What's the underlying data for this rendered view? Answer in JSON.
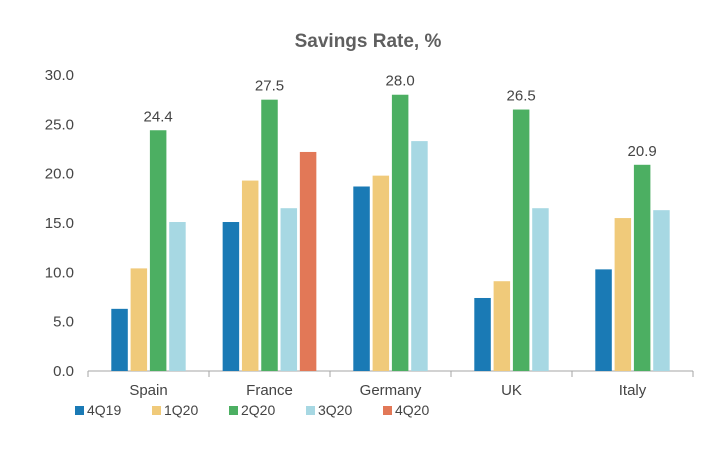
{
  "chart_data": {
    "type": "bar",
    "title": "Savings Rate, %",
    "xlabel": "",
    "ylabel": "",
    "ylim": [
      0,
      30
    ],
    "yticks": [
      "0.0",
      "5.0",
      "10.0",
      "15.0",
      "20.0",
      "25.0",
      "30.0"
    ],
    "grid": false,
    "legend_position": "bottom-left",
    "categories": [
      "Spain",
      "France",
      "Germany",
      "UK",
      "Italy"
    ],
    "series": [
      {
        "name": "4Q19",
        "color": "#1a7ab5",
        "values": [
          6.3,
          15.1,
          18.7,
          7.4,
          10.3
        ]
      },
      {
        "name": "1Q20",
        "color": "#f0ca7a",
        "values": [
          10.4,
          19.3,
          19.8,
          9.1,
          15.5
        ]
      },
      {
        "name": "2Q20",
        "color": "#4caf62",
        "values": [
          24.4,
          27.5,
          28.0,
          26.5,
          20.9
        ]
      },
      {
        "name": "3Q20",
        "color": "#a7d8e3",
        "values": [
          15.1,
          16.5,
          23.3,
          16.5,
          16.3
        ]
      },
      {
        "name": "4Q20",
        "color": "#e27857",
        "values": [
          null,
          22.2,
          null,
          null,
          null
        ]
      }
    ],
    "data_labels": [
      {
        "category": "Spain",
        "series": "2Q20",
        "text": "24.4"
      },
      {
        "category": "France",
        "series": "2Q20",
        "text": "27.5"
      },
      {
        "category": "Germany",
        "series": "2Q20",
        "text": "28.0"
      },
      {
        "category": "UK",
        "series": "2Q20",
        "text": "26.5"
      },
      {
        "category": "Italy",
        "series": "2Q20",
        "text": "20.9"
      }
    ]
  }
}
